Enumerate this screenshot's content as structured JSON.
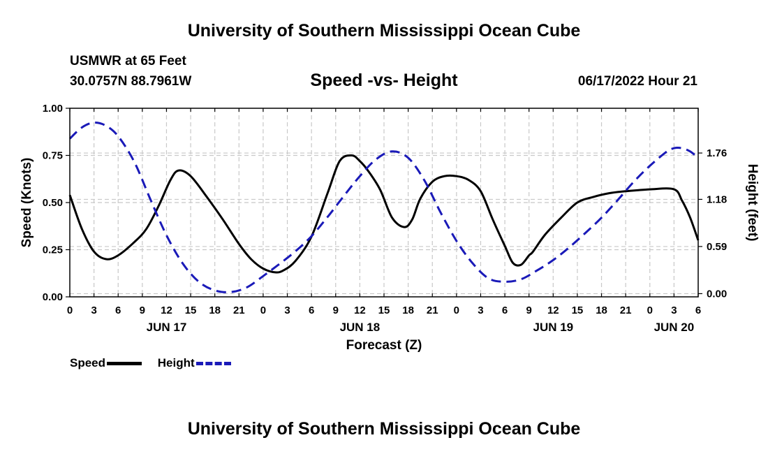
{
  "header": {
    "title": "University of Southern Mississippi Ocean Cube",
    "station": "USMWR at 65 Feet",
    "coordinates": "30.0757N  88.7961W",
    "subtitle": "Speed -vs- Height",
    "datetime": "06/17/2022 Hour 21"
  },
  "footer": {
    "title": "University of Southern Mississippi Ocean Cube"
  },
  "legend": {
    "speed_label": "Speed",
    "height_label": "Height"
  },
  "colors": {
    "speed": "#000000",
    "height": "#1a1ab8",
    "grid": "#c8c8c8"
  },
  "chart_data": {
    "type": "line",
    "title": "Speed -vs- Height",
    "xlabel": "Forecast (Z)",
    "ylabel": "Speed (Knots)",
    "ylabel_right": "Height (feet)",
    "xlim": [
      0,
      78
    ],
    "ylim": [
      0,
      1.0
    ],
    "ylim_right": [
      -0.04,
      2.32
    ],
    "x_tick_labels": [
      "0",
      "3",
      "6",
      "9",
      "12",
      "15",
      "18",
      "21",
      "0",
      "3",
      "6",
      "9",
      "12",
      "15",
      "18",
      "21",
      "0",
      "3",
      "6",
      "9",
      "12",
      "15",
      "18",
      "21",
      "0",
      "3",
      "6"
    ],
    "date_labels": [
      {
        "label": "JUN 17",
        "hour": 12
      },
      {
        "label": "JUN 18",
        "hour": 36
      },
      {
        "label": "JUN 19",
        "hour": 60
      },
      {
        "label": "JUN 20",
        "hour": 75
      }
    ],
    "y_ticks_left": [
      "0.00",
      "0.25",
      "0.50",
      "0.75",
      "1.00"
    ],
    "y_ticks_right": [
      "0.00",
      "0.59",
      "1.18",
      "1.76"
    ],
    "grid": true,
    "series": [
      {
        "name": "Speed",
        "axis": "left",
        "x": [
          0,
          1.5,
          3,
          4.5,
          6,
          8,
          9.5,
          11,
          12.5,
          13.5,
          15,
          17,
          19,
          21,
          22.5,
          24,
          25.5,
          26.5,
          28,
          30,
          32,
          33.5,
          35,
          36,
          37,
          38.5,
          40,
          41.5,
          42.5,
          43.5,
          45,
          46.5,
          48,
          49.5,
          51,
          52.5,
          54,
          55,
          56,
          57,
          57.5,
          59,
          61,
          63,
          65,
          67,
          69,
          72,
          75,
          76,
          77,
          78
        ],
        "values": [
          0.54,
          0.36,
          0.24,
          0.2,
          0.22,
          0.29,
          0.36,
          0.48,
          0.62,
          0.67,
          0.64,
          0.53,
          0.41,
          0.28,
          0.2,
          0.15,
          0.13,
          0.14,
          0.19,
          0.32,
          0.55,
          0.72,
          0.75,
          0.72,
          0.67,
          0.57,
          0.42,
          0.37,
          0.41,
          0.52,
          0.61,
          0.64,
          0.64,
          0.62,
          0.56,
          0.41,
          0.27,
          0.18,
          0.17,
          0.22,
          0.24,
          0.33,
          0.42,
          0.5,
          0.53,
          0.55,
          0.56,
          0.57,
          0.57,
          0.51,
          0.42,
          0.3
        ]
      },
      {
        "name": "Height",
        "axis": "right",
        "x": [
          0,
          1.5,
          3,
          4.5,
          6,
          8,
          10,
          12,
          14,
          16,
          18,
          20,
          22,
          24,
          26,
          28,
          30,
          32,
          34,
          36,
          38,
          40,
          42,
          44,
          46,
          48,
          50,
          52,
          54,
          56,
          58,
          60,
          62,
          64,
          66,
          68,
          70,
          72,
          74,
          75,
          76,
          77,
          78
        ],
        "values": [
          1.94,
          2.08,
          2.14,
          2.1,
          1.97,
          1.65,
          1.18,
          0.73,
          0.38,
          0.15,
          0.04,
          0.02,
          0.08,
          0.22,
          0.37,
          0.53,
          0.72,
          0.96,
          1.22,
          1.47,
          1.68,
          1.78,
          1.7,
          1.42,
          1.02,
          0.66,
          0.38,
          0.19,
          0.15,
          0.18,
          0.29,
          0.42,
          0.58,
          0.76,
          0.95,
          1.17,
          1.4,
          1.6,
          1.77,
          1.82,
          1.82,
          1.78,
          1.7
        ]
      }
    ]
  }
}
